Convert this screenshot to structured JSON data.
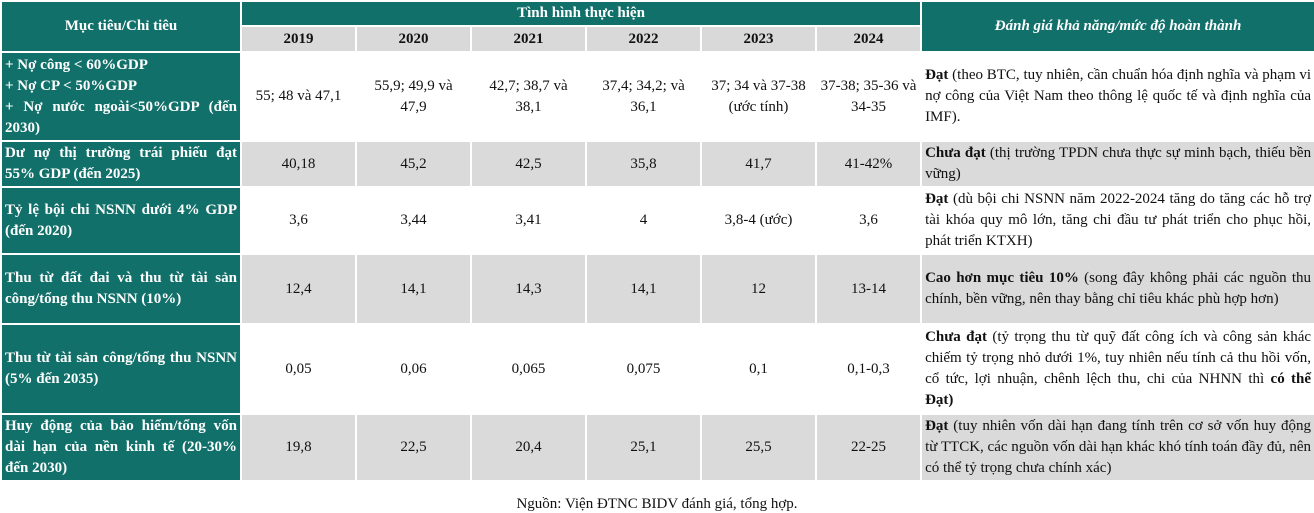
{
  "header": {
    "criteria": "Mục tiêu/Chỉ tiêu",
    "progress": "Tình hình thực hiện",
    "assessment": "Đánh giá khả năng/mức độ hoàn thành",
    "years": [
      "2019",
      "2020",
      "2021",
      "2022",
      "2023",
      "2024"
    ]
  },
  "rows": [
    {
      "criteria": "+ Nợ công < 60%GDP\n+ Nợ CP < 50%GDP\n+ Nợ nước ngoài<50%GDP (đến 2030)",
      "values": [
        "55; 48 và 47,1",
        "55,9; 49,9 và 47,9",
        "42,7; 38,7 và 38,1",
        "37,4; 34,2; và 36,1",
        "37; 34 và 37-38 (ước tính)",
        "37-38; 35-36 và 34-35"
      ],
      "assessment": [
        {
          "text": "Đạt",
          "bold": true
        },
        {
          "text": " (theo BTC, tuy nhiên, cần chuẩn hóa định nghĩa và phạm vi nợ công của Việt Nam theo thông lệ quốc tế và định nghĩa của IMF).",
          "bold": false
        }
      ]
    },
    {
      "criteria": "Dư nợ thị trường trái phiếu đạt 55% GDP (đến 2025)",
      "values": [
        "40,18",
        "45,2",
        "42,5",
        "35,8",
        "41,7",
        "41-42%"
      ],
      "assessment": [
        {
          "text": "Chưa đạt",
          "bold": true
        },
        {
          "text": " (thị trường TPDN chưa thực sự minh bạch, thiếu bền vững)",
          "bold": false
        }
      ]
    },
    {
      "criteria": "Tỷ lệ bội chi NSNN dưới 4% GDP (đến 2020)",
      "values": [
        "3,6",
        "3,44",
        "3,41",
        "4",
        "3,8-4 (ước)",
        "3,6"
      ],
      "assessment": [
        {
          "text": "Đạt",
          "bold": true
        },
        {
          "text": " (dù bội chi NSNN năm 2022-2024 tăng do tăng các hỗ trợ tài khóa quy mô lớn, tăng chi đầu tư phát triển cho phục hồi, phát triển KTXH)",
          "bold": false
        }
      ]
    },
    {
      "criteria": "Thu từ đất đai và thu từ tài sản công/tổng thu NSNN (10%)",
      "values": [
        "12,4",
        "14,1",
        "14,3",
        "14,1",
        "12",
        "13-14"
      ],
      "assessment": [
        {
          "text": "Cao hơn mục tiêu 10%",
          "bold": true
        },
        {
          "text": " (song đây không phải các nguồn thu chính, bền vững, nên thay bằng chỉ tiêu khác phù hợp hơn)",
          "bold": false
        }
      ]
    },
    {
      "criteria": "Thu từ tài sản công/tổng thu NSNN (5% đến 2035)",
      "values": [
        "0,05",
        "0,06",
        "0,065",
        "0,075",
        "0,1",
        "0,1-0,3"
      ],
      "assessment": [
        {
          "text": "Chưa đạt",
          "bold": true
        },
        {
          "text": " (tỷ trọng thu từ quỹ đất công ích và công sản khác chiếm tỷ trọng nhỏ dưới 1%, tuy nhiên nếu tính cả thu hồi vốn, cổ tức, lợi nhuận, chênh lệch thu, chi của NHNN thì ",
          "bold": false
        },
        {
          "text": "có thể Đạt)",
          "bold": true
        }
      ]
    },
    {
      "criteria": "Huy động của bảo hiểm/tổng vốn dài hạn của nền kinh tế (20-30% đến 2030)",
      "values": [
        "19,8",
        "22,5",
        "20,4",
        "25,1",
        "25,5",
        "22-25"
      ],
      "assessment": [
        {
          "text": "Đạt",
          "bold": true
        },
        {
          "text": " (tuy nhiên vốn dài hạn đang tính trên cơ sở vốn huy động từ TTCK, các nguồn vốn dài hạn khác khó tính toán đầy đủ, nên có thể tỷ trọng chưa chính xác)",
          "bold": false
        }
      ]
    }
  ],
  "source": "Nguồn: Viện ĐTNC BIDV đánh giá, tổng hợp."
}
